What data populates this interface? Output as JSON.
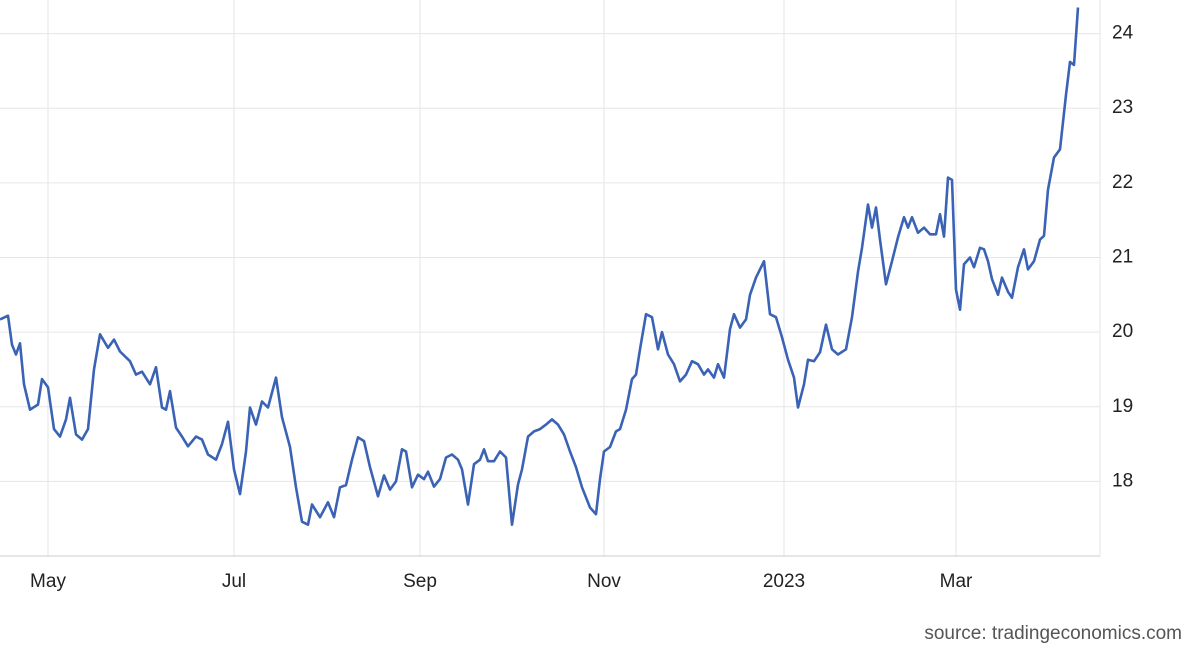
{
  "chart_data": {
    "type": "line",
    "source": "source: tradingeconomics.com",
    "color": "#3a62b5",
    "grid": true,
    "x": [
      0,
      4,
      6,
      8,
      10,
      12,
      15,
      19,
      21,
      24,
      27,
      30,
      33,
      35,
      38,
      41,
      44,
      47,
      50,
      54,
      57,
      60,
      65,
      68,
      71,
      75,
      78,
      81,
      83,
      85,
      88,
      91,
      94,
      98,
      101,
      104,
      108,
      111,
      114,
      117,
      120,
      123,
      125,
      128,
      131,
      134,
      138,
      141,
      145,
      148,
      151,
      154,
      156,
      160,
      164,
      167,
      170,
      173,
      176,
      179,
      182,
      185,
      189,
      192,
      195,
      198,
      201,
      203,
      206,
      209,
      212,
      214,
      217,
      220,
      223,
      226,
      229,
      231,
      234,
      237,
      240,
      242,
      244,
      247,
      250,
      253,
      256,
      259,
      261,
      264,
      267,
      270,
      273,
      276,
      279,
      282,
      285,
      288,
      291,
      295,
      298,
      300,
      302,
      305,
      308,
      310,
      313,
      316,
      318,
      320,
      323,
      326,
      329,
      331,
      334,
      337,
      340,
      343,
      346,
      349,
      352,
      354,
      357,
      359,
      362,
      365,
      367,
      370,
      373,
      375,
      378,
      382,
      385,
      388,
      391,
      394,
      397,
      399,
      402,
      404,
      407,
      410,
      413,
      416,
      419,
      423,
      426,
      429,
      431,
      434,
      436,
      438,
      440,
      443,
      446,
      449,
      452,
      454,
      456,
      459,
      462,
      465,
      468,
      470,
      472,
      474,
      476,
      478,
      480,
      482,
      485,
      487,
      490,
      492,
      494,
      496,
      499,
      501,
      504,
      506,
      509,
      512,
      514,
      517,
      520,
      522,
      524,
      527,
      530,
      533,
      535,
      537,
      539
    ],
    "values": [
      20.17,
      20.22,
      19.83,
      19.7,
      19.85,
      19.3,
      18.96,
      19.03,
      19.37,
      19.26,
      18.7,
      18.6,
      18.83,
      19.12,
      18.63,
      18.56,
      18.7,
      19.5,
      19.97,
      19.79,
      19.9,
      19.74,
      19.61,
      19.43,
      19.47,
      19.3,
      19.53,
      18.99,
      18.96,
      19.21,
      18.72,
      18.6,
      18.47,
      18.6,
      18.56,
      18.36,
      18.29,
      18.5,
      18.8,
      18.16,
      17.83,
      18.4,
      18.99,
      18.76,
      19.07,
      18.99,
      19.39,
      18.86,
      18.46,
      17.92,
      17.46,
      17.42,
      17.69,
      17.52,
      17.72,
      17.52,
      17.92,
      17.95,
      18.29,
      18.59,
      18.54,
      18.19,
      17.8,
      18.08,
      17.89,
      18.0,
      18.43,
      18.4,
      17.92,
      18.09,
      18.03,
      18.13,
      17.93,
      18.03,
      18.32,
      18.36,
      18.29,
      18.16,
      17.69,
      18.23,
      18.29,
      18.43,
      18.27,
      18.27,
      18.4,
      18.32,
      17.42,
      17.96,
      18.16,
      18.6,
      18.67,
      18.7,
      18.76,
      18.83,
      18.76,
      18.63,
      18.4,
      18.19,
      17.92,
      17.65,
      17.56,
      18.03,
      18.4,
      18.46,
      18.67,
      18.7,
      18.96,
      19.37,
      19.43,
      19.77,
      20.24,
      20.2,
      19.77,
      20.0,
      19.7,
      19.57,
      19.34,
      19.43,
      19.61,
      19.57,
      19.43,
      19.5,
      19.39,
      19.57,
      19.39,
      20.04,
      20.24,
      20.06,
      20.17,
      20.5,
      20.73,
      20.95,
      20.24,
      20.2,
      19.93,
      19.63,
      19.39,
      18.99,
      19.3,
      19.63,
      19.61,
      19.73,
      20.1,
      19.77,
      19.7,
      19.77,
      20.2,
      20.81,
      21.13,
      21.71,
      21.4,
      21.67,
      21.24,
      20.64,
      20.95,
      21.27,
      21.54,
      21.4,
      21.54,
      21.33,
      21.4,
      21.31,
      21.31,
      21.58,
      21.28,
      22.07,
      22.04,
      20.57,
      20.3,
      20.91,
      21.0,
      20.87,
      21.13,
      21.11,
      20.95,
      20.71,
      20.5,
      20.73,
      20.54,
      20.46,
      20.87,
      21.11,
      20.84,
      20.95,
      21.24,
      21.29,
      21.91,
      22.34,
      22.45,
      23.18,
      23.62,
      23.58,
      24.35
    ],
    "xlim": [
      0,
      550
    ],
    "xticks": [
      {
        "value": 24,
        "label": "May"
      },
      {
        "value": 117,
        "label": "Jul"
      },
      {
        "value": 210,
        "label": "Sep"
      },
      {
        "value": 302,
        "label": "Nov"
      },
      {
        "value": 392,
        "label": "2023"
      },
      {
        "value": 478,
        "label": "Mar"
      }
    ],
    "ylim": [
      17,
      24.45
    ],
    "yticks": [
      18,
      19,
      20,
      21,
      22,
      23,
      24
    ]
  }
}
